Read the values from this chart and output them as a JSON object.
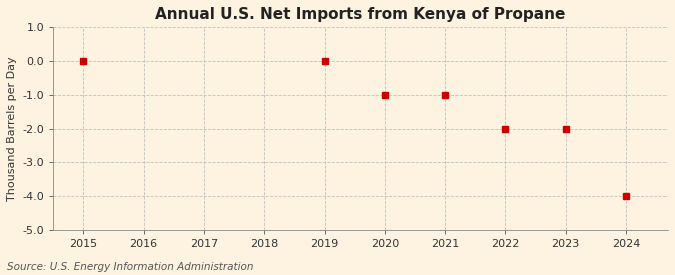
{
  "title": "Annual U.S. Net Imports from Kenya of Propane",
  "ylabel": "Thousand Barrels per Day",
  "source": "Source: U.S. Energy Information Administration",
  "background_color": "#fdf3e0",
  "x_data": [
    2015,
    2019,
    2020,
    2021,
    2022,
    2023,
    2024
  ],
  "y_data": [
    0.0,
    0.0,
    -1.0,
    -1.0,
    -2.0,
    -2.0,
    -4.0
  ],
  "xlim": [
    2014.5,
    2024.7
  ],
  "ylim": [
    -5.0,
    1.0
  ],
  "yticks": [
    1.0,
    0.0,
    -1.0,
    -2.0,
    -3.0,
    -4.0,
    -5.0
  ],
  "xticks": [
    2015,
    2016,
    2017,
    2018,
    2019,
    2020,
    2021,
    2022,
    2023,
    2024
  ],
  "marker_color": "#cc0000",
  "marker_size": 4,
  "grid_color": "#bbbbbb",
  "title_fontsize": 11,
  "label_fontsize": 8,
  "tick_fontsize": 8,
  "source_fontsize": 7.5
}
